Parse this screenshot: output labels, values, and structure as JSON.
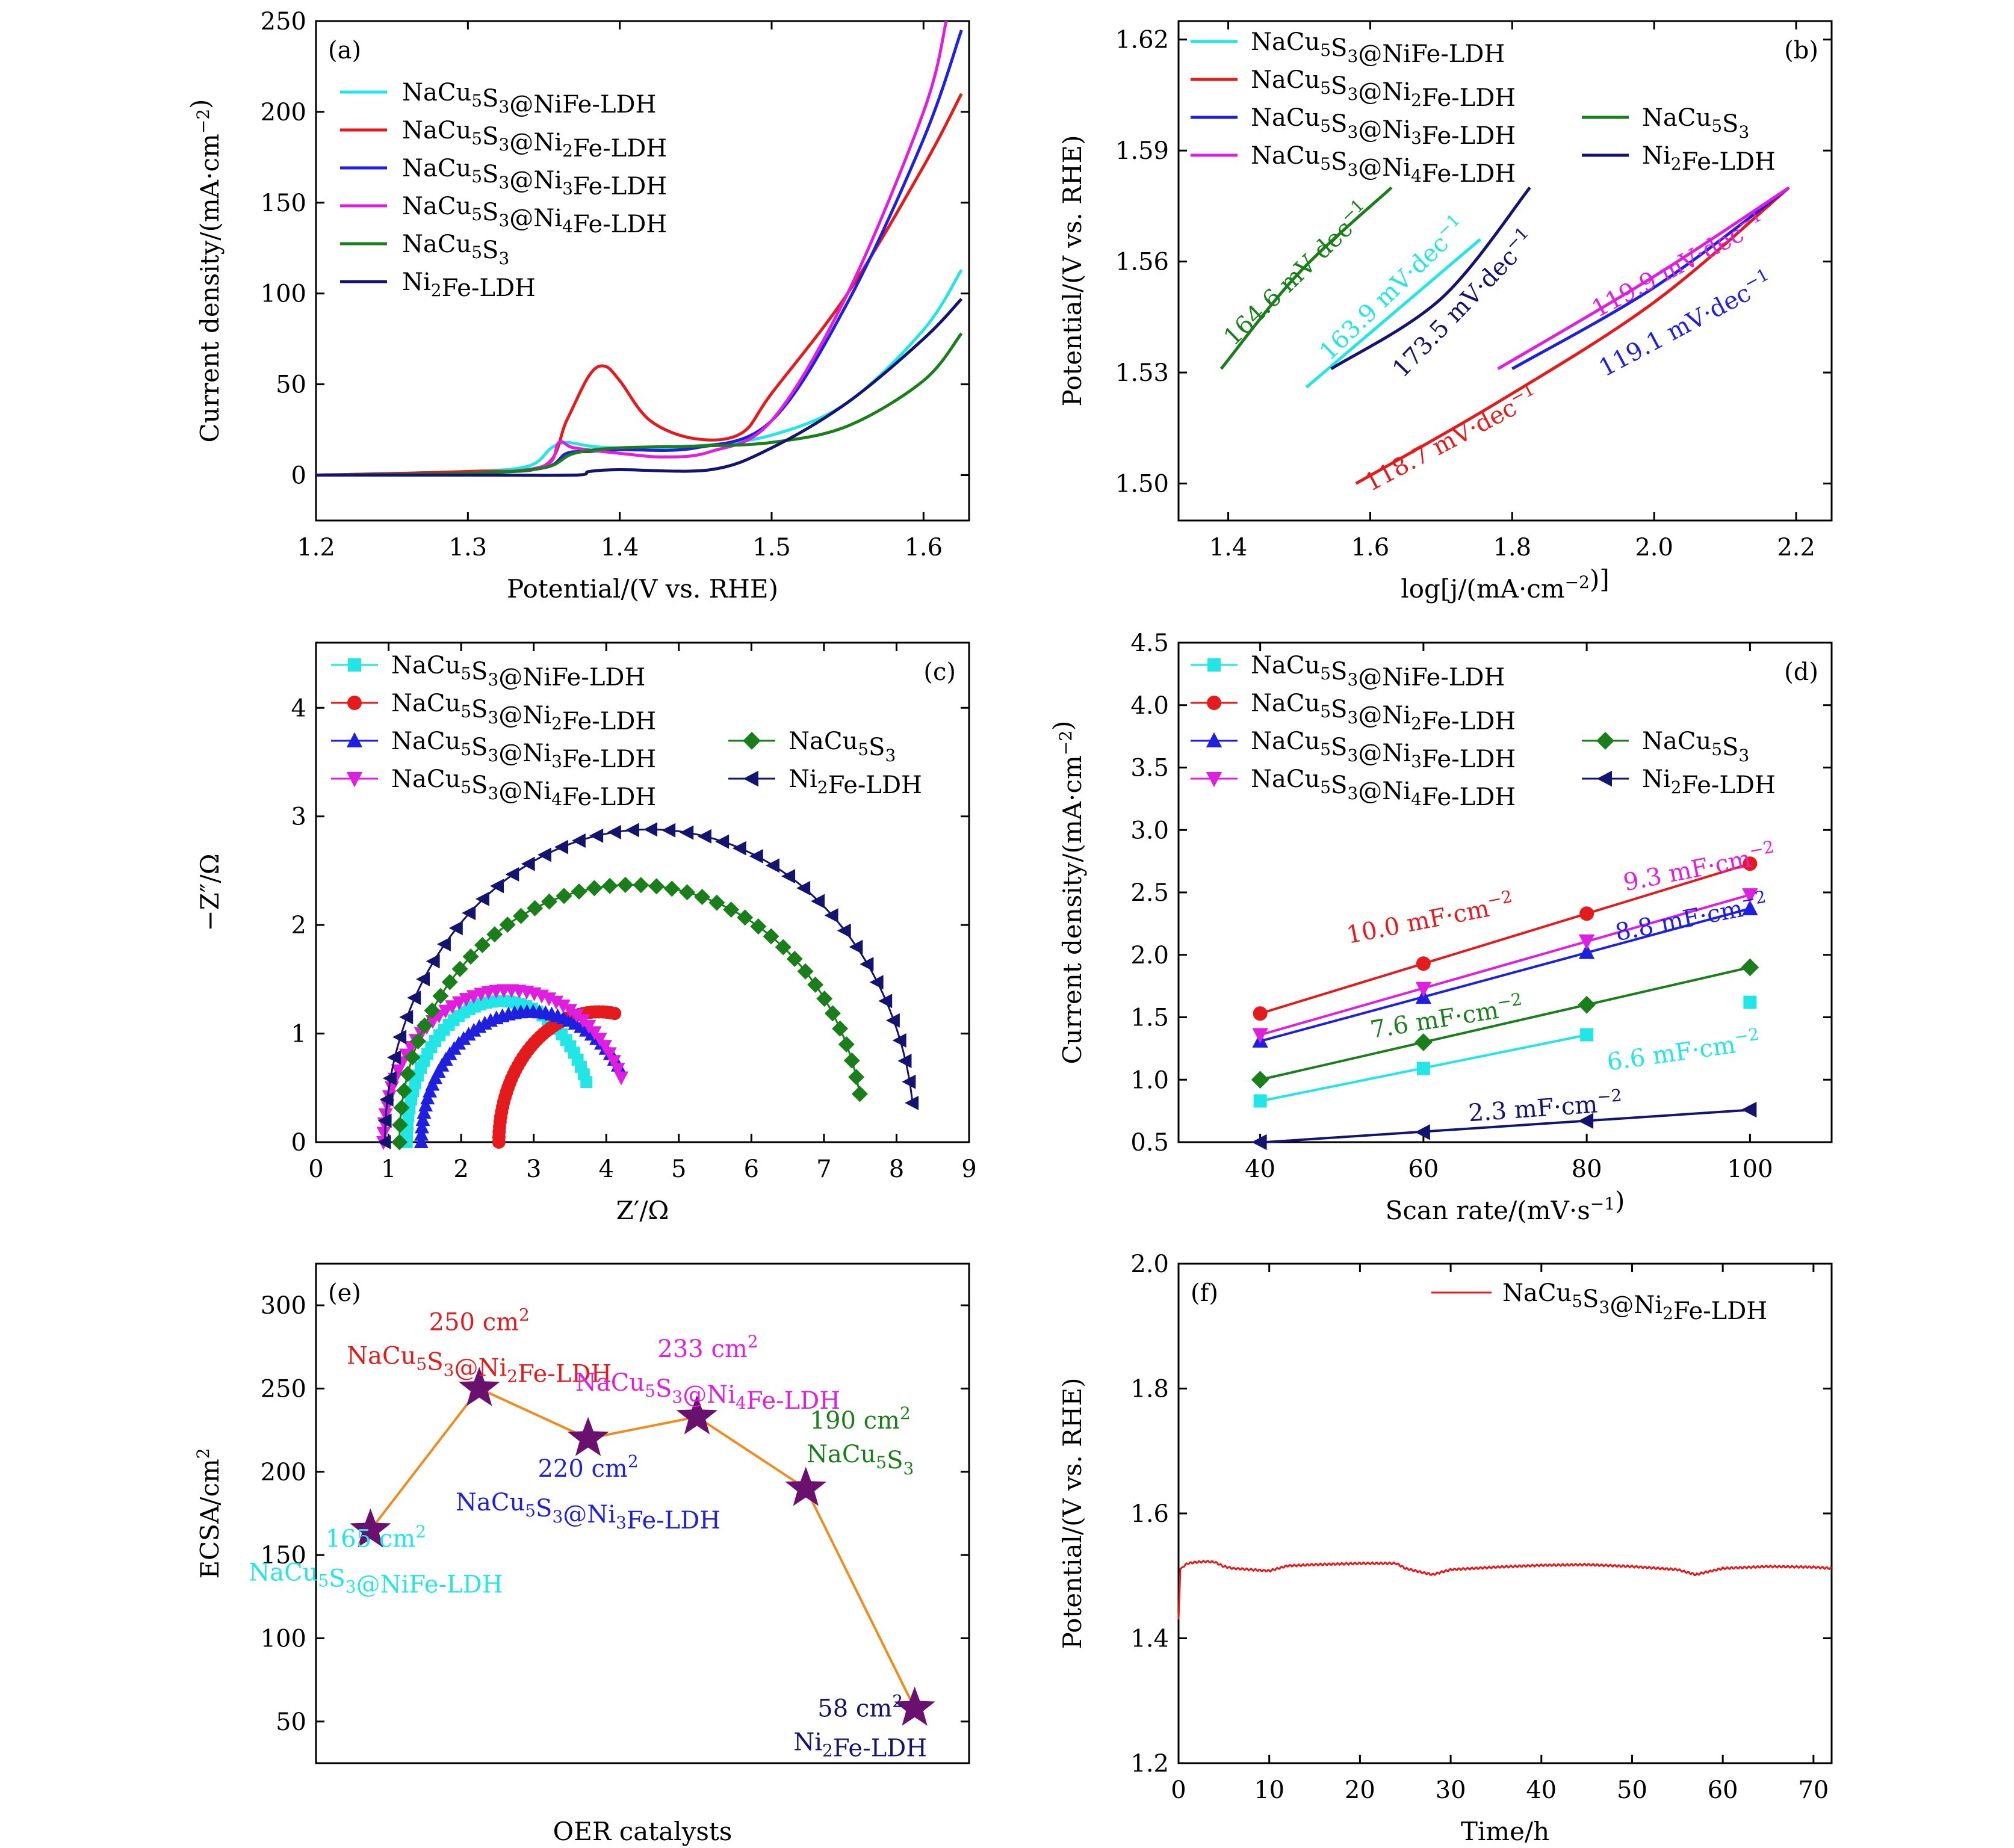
{
  "colors": {
    "cyan": "#22e6e6",
    "red": "#e41a1c",
    "blue": "#1f1fe0",
    "magenta": "#e01ee0",
    "green": "#1a7f1a",
    "navy": "#131370",
    "purple": "#6a1170",
    "orange": "#f08c1e"
  },
  "chart_data": [
    {
      "id": "a",
      "panel": "(a)",
      "type": "line",
      "xlabel": "Potential/(V vs. RHE)",
      "ylabel": "Current density/(mA·cm⁻²)",
      "xlim": [
        1.2,
        1.63
      ],
      "ylim": [
        -25,
        250
      ],
      "xticks": [
        1.2,
        1.3,
        1.4,
        1.5,
        1.6
      ],
      "xtick_labels": [
        "1.2",
        "1.3",
        "1.4",
        "1.5",
        "1.6"
      ],
      "yticks": [
        0,
        50,
        100,
        150,
        200,
        250
      ],
      "ytick_labels": [
        "0",
        "50",
        "100",
        "150",
        "200",
        "250"
      ],
      "legend_position": "top-left",
      "series": [
        {
          "name": "NaCu₅S₃@NiFe-LDH",
          "color": "cyan",
          "x": [
            1.2,
            1.3,
            1.34,
            1.355,
            1.365,
            1.38,
            1.4,
            1.45,
            1.5,
            1.55,
            1.6,
            1.625
          ],
          "y": [
            0,
            2,
            5,
            15,
            18,
            16,
            15,
            16,
            22,
            40,
            80,
            113
          ]
        },
        {
          "name": "NaCu₅S₃@Ni₂Fe-LDH",
          "color": "red",
          "x": [
            1.2,
            1.3,
            1.35,
            1.365,
            1.38,
            1.39,
            1.4,
            1.42,
            1.45,
            1.48,
            1.5,
            1.55,
            1.6,
            1.625
          ],
          "y": [
            0,
            2,
            5,
            30,
            55,
            60,
            52,
            30,
            20,
            23,
            45,
            100,
            170,
            210
          ]
        },
        {
          "name": "NaCu₅S₃@Ni₃Fe-LDH",
          "color": "blue",
          "x": [
            1.2,
            1.3,
            1.35,
            1.365,
            1.38,
            1.4,
            1.45,
            1.5,
            1.55,
            1.6,
            1.625
          ],
          "y": [
            0,
            1,
            4,
            12,
            13,
            14,
            15,
            30,
            95,
            185,
            245
          ]
        },
        {
          "name": "NaCu₅S₃@Ni₄Fe-LDH",
          "color": "magenta",
          "x": [
            1.2,
            1.3,
            1.35,
            1.36,
            1.37,
            1.4,
            1.43,
            1.46,
            1.5,
            1.55,
            1.6,
            1.615
          ],
          "y": [
            0,
            1,
            5,
            18,
            15,
            12,
            10,
            13,
            30,
            100,
            200,
            250
          ]
        },
        {
          "name": "NaCu₅S₃",
          "color": "green",
          "x": [
            1.2,
            1.3,
            1.35,
            1.37,
            1.4,
            1.45,
            1.5,
            1.55,
            1.6,
            1.625
          ],
          "y": [
            0,
            1,
            4,
            12,
            15,
            16,
            18,
            27,
            52,
            78
          ]
        },
        {
          "name": "Ni₂Fe-LDH",
          "color": "navy",
          "x": [
            1.2,
            1.3,
            1.37,
            1.38,
            1.4,
            1.46,
            1.5,
            1.55,
            1.6,
            1.625
          ],
          "y": [
            0,
            0,
            0,
            2,
            3,
            3,
            15,
            40,
            75,
            97
          ]
        }
      ]
    },
    {
      "id": "b",
      "panel": "(b)",
      "type": "line",
      "xlabel": "log[j/(mA·cm⁻²)]",
      "ylabel": "Potential/(V vs. RHE)",
      "xlim": [
        1.33,
        2.25
      ],
      "ylim": [
        1.49,
        1.625
      ],
      "xticks": [
        1.4,
        1.6,
        1.8,
        2.0,
        2.2
      ],
      "xtick_labels": [
        "1.4",
        "1.6",
        "1.8",
        "2.0",
        "2.2"
      ],
      "yticks": [
        1.5,
        1.53,
        1.56,
        1.59,
        1.62
      ],
      "ytick_labels": [
        "1.50",
        "1.53",
        "1.56",
        "1.59",
        "1.62"
      ],
      "legend_position": "top-left",
      "series": [
        {
          "name": "NaCu₅S₃@NiFe-LDH",
          "color": "cyan",
          "x": [
            1.51,
            1.755
          ],
          "y": [
            1.526,
            1.566
          ]
        },
        {
          "name": "NaCu₅S₃@Ni₂Fe-LDH",
          "color": "red",
          "x": [
            1.58,
            1.78,
            2.0,
            2.19
          ],
          "y": [
            1.5,
            1.522,
            1.549,
            1.58
          ]
        },
        {
          "name": "NaCu₅S₃@Ni₃Fe-LDH",
          "color": "blue",
          "x": [
            1.8,
            2.0,
            2.19
          ],
          "y": [
            1.531,
            1.553,
            1.58
          ]
        },
        {
          "name": "NaCu₅S₃@Ni₄Fe-LDH",
          "color": "magenta",
          "x": [
            1.78,
            2.0,
            2.19
          ],
          "y": [
            1.531,
            1.556,
            1.58
          ]
        },
        {
          "name": "NaCu₅S₃",
          "color": "green",
          "x": [
            1.39,
            1.5,
            1.63
          ],
          "y": [
            1.531,
            1.557,
            1.58
          ]
        },
        {
          "name": "Ni₂Fe-LDH",
          "color": "navy",
          "x": [
            1.545,
            1.7,
            1.825
          ],
          "y": [
            1.531,
            1.55,
            1.58
          ]
        }
      ],
      "annotations": [
        {
          "text": "164.6 mV·dec⁻¹",
          "color": "green",
          "x": 1.505,
          "y": 1.555,
          "angle": -44
        },
        {
          "text": "163.9 mV·dec⁻¹",
          "color": "cyan",
          "x": 1.64,
          "y": 1.551,
          "angle": -44
        },
        {
          "text": "173.5 mV·dec⁻¹",
          "color": "navy",
          "x": 1.74,
          "y": 1.547,
          "angle": -46
        },
        {
          "text": "119.9 mV·dec⁻¹",
          "color": "magenta",
          "x": 2.04,
          "y": 1.557,
          "angle": -28
        },
        {
          "text": "119.1 mV·dec⁻¹",
          "color": "blue",
          "x": 2.05,
          "y": 1.541,
          "angle": -28
        },
        {
          "text": "118.7 mV·dec⁻¹",
          "color": "red",
          "x": 1.72,
          "y": 1.51,
          "angle": -28
        }
      ]
    },
    {
      "id": "c",
      "panel": "(c)",
      "type": "scatter",
      "xlabel": "Z′/Ω",
      "ylabel": "−Z″/Ω",
      "xlim": [
        0,
        9
      ],
      "ylim": [
        0,
        4.6
      ],
      "xticks": [
        0,
        1,
        2,
        3,
        4,
        5,
        6,
        7,
        8,
        9
      ],
      "xtick_labels": [
        "0",
        "1",
        "2",
        "3",
        "4",
        "5",
        "6",
        "7",
        "8",
        "9"
      ],
      "yticks": [
        0,
        1,
        2,
        3,
        4
      ],
      "ytick_labels": [
        "0",
        "1",
        "2",
        "3",
        "4"
      ],
      "legend_position": "top-left",
      "series": [
        {
          "name": "NaCu₅S₃@NiFe-LDH",
          "color": "cyan",
          "marker": "square",
          "center": 2.55,
          "radius": 1.3,
          "height": 1.3,
          "t_end": 0.86
        },
        {
          "name": "NaCu₅S₃@Ni₂Fe-LDH",
          "color": "red",
          "marker": "circle",
          "center": 3.9,
          "radius": 1.38,
          "height": 1.2,
          "t_end": 0.55
        },
        {
          "name": "NaCu₅S₃@Ni₃Fe-LDH",
          "color": "blue",
          "marker": "triangle-up",
          "center": 2.95,
          "radius": 1.5,
          "height": 1.2,
          "t_end": 0.8
        },
        {
          "name": "NaCu₅S₃@Ni₄Fe-LDH",
          "color": "magenta",
          "marker": "triangle-down",
          "center": 2.65,
          "radius": 1.72,
          "height": 1.4,
          "t_end": 0.86
        },
        {
          "name": "NaCu₅S₃",
          "color": "green",
          "marker": "diamond",
          "center": 4.35,
          "radius": 3.2,
          "height": 2.37,
          "t_end": 0.94
        },
        {
          "name": "Ni₂Fe-LDH",
          "color": "navy",
          "marker": "triangle-left",
          "center": 4.6,
          "radius": 3.65,
          "height": 2.88,
          "t_end": 0.96
        }
      ]
    },
    {
      "id": "d",
      "panel": "(d)",
      "type": "scatter",
      "xlabel": "Scan rate/(mV·s⁻¹)",
      "ylabel": "Current density/(mA·cm⁻²)",
      "xlim": [
        30,
        110
      ],
      "ylim": [
        0.5,
        4.5
      ],
      "xticks": [
        40,
        60,
        80,
        100
      ],
      "xtick_labels": [
        "40",
        "60",
        "80",
        "100"
      ],
      "yticks": [
        0.5,
        1.0,
        1.5,
        2.0,
        2.5,
        3.0,
        3.5,
        4.0,
        4.5
      ],
      "ytick_labels": [
        "0.5",
        "1.0",
        "1.5",
        "2.0",
        "2.5",
        "3.0",
        "3.5",
        "4.0",
        "4.5"
      ],
      "legend_position": "top-left",
      "series": [
        {
          "name": "NaCu₅S₃@NiFe-LDH",
          "color": "cyan",
          "marker": "square",
          "x": [
            40,
            60,
            80,
            100
          ],
          "y": [
            0.83,
            1.09,
            1.36,
            1.62
          ],
          "fit_end": 80
        },
        {
          "name": "NaCu₅S₃@Ni₂Fe-LDH",
          "color": "red",
          "marker": "circle",
          "x": [
            40,
            60,
            80,
            100
          ],
          "y": [
            1.53,
            1.93,
            2.33,
            2.73
          ],
          "fit_end": 100
        },
        {
          "name": "NaCu₅S₃@Ni₃Fe-LDH",
          "color": "blue",
          "marker": "triangle-up",
          "x": [
            40,
            60,
            80,
            100
          ],
          "y": [
            1.31,
            1.66,
            2.02,
            2.37
          ],
          "fit_end": 100
        },
        {
          "name": "NaCu₅S₃@Ni₄Fe-LDH",
          "color": "magenta",
          "marker": "triangle-down",
          "x": [
            40,
            60,
            80,
            100
          ],
          "y": [
            1.36,
            1.73,
            2.11,
            2.48
          ],
          "fit_end": 100
        },
        {
          "name": "NaCu₅S₃",
          "color": "green",
          "marker": "diamond",
          "x": [
            40,
            60,
            80,
            100
          ],
          "y": [
            1.0,
            1.3,
            1.6,
            1.9
          ],
          "fit_end": 100
        },
        {
          "name": "Ni₂Fe-LDH",
          "color": "navy",
          "marker": "triangle-left",
          "x": [
            40,
            60,
            80,
            100
          ],
          "y": [
            0.5,
            0.58,
            0.67,
            0.76
          ],
          "fit_end": 100
        }
      ],
      "annotations": [
        {
          "text": "10.0 mF·cm⁻²",
          "color": "red",
          "x": 61,
          "y": 2.22,
          "angle": -11
        },
        {
          "text": "9.3 mF·cm⁻²",
          "color": "magenta",
          "x": 94,
          "y": 2.63,
          "angle": -11
        },
        {
          "text": "8.8 mF·cm⁻²",
          "color": "blue",
          "x": 93,
          "y": 2.23,
          "angle": -11
        },
        {
          "text": "7.6 mF·cm⁻²",
          "color": "green",
          "x": 63,
          "y": 1.43,
          "angle": -9
        },
        {
          "text": "6.6 mF·cm⁻²",
          "color": "cyan",
          "x": 92,
          "y": 1.16,
          "angle": -8
        },
        {
          "text": "2.3 mF·cm⁻²",
          "color": "navy",
          "x": 75,
          "y": 0.71,
          "angle": -4
        }
      ]
    },
    {
      "id": "e",
      "panel": "(e)",
      "type": "line",
      "xlabel": "OER catalysts",
      "ylabel": "ECSA/cm²",
      "xlim": [
        0,
        6
      ],
      "ylim": [
        25,
        325
      ],
      "yticks": [
        50,
        100,
        150,
        200,
        250,
        300
      ],
      "ytick_labels": [
        "50",
        "100",
        "150",
        "200",
        "250",
        "300"
      ],
      "x": [
        0.5,
        1.5,
        2.5,
        3.5,
        4.5,
        5.5
      ],
      "values": [
        165,
        250,
        220,
        233,
        190,
        58
      ],
      "line_color": "orange",
      "marker_color": "purple",
      "annotations": [
        {
          "lines": [
            "165 cm²",
            "NaCu₅S₃@NiFe-LDH"
          ],
          "color": "cyan",
          "x": 0.55,
          "y": 155
        },
        {
          "lines": [
            "250 cm²",
            "NaCu₅S₃@Ni₂Fe-LDH"
          ],
          "color": "red",
          "x": 1.5,
          "y": 285
        },
        {
          "lines": [
            "220 cm²",
            "NaCu₅S₃@Ni₃Fe-LDH"
          ],
          "color": "blue",
          "x": 2.5,
          "y": 197
        },
        {
          "lines": [
            "233 cm²",
            "NaCu₅S₃@Ni₄Fe-LDH"
          ],
          "color": "magenta",
          "x": 3.6,
          "y": 269
        },
        {
          "lines": [
            "190 cm²",
            "NaCu₅S₃"
          ],
          "color": "green",
          "x": 5.0,
          "y": 226
        },
        {
          "lines": [
            "58 cm²",
            "Ni₂Fe-LDH"
          ],
          "color": "navy",
          "x": 5.0,
          "y": 53
        }
      ]
    },
    {
      "id": "f",
      "panel": "(f)",
      "type": "line",
      "xlabel": "Time/h",
      "ylabel": "Potential/(V vs. RHE)",
      "xlim": [
        0,
        72
      ],
      "ylim": [
        1.2,
        2.0
      ],
      "xticks": [
        0,
        10,
        20,
        30,
        40,
        50,
        60,
        70
      ],
      "xtick_labels": [
        "0",
        "10",
        "20",
        "30",
        "40",
        "50",
        "60",
        "70"
      ],
      "yticks": [
        1.2,
        1.4,
        1.6,
        1.8,
        2.0
      ],
      "ytick_labels": [
        "1.2",
        "1.4",
        "1.6",
        "1.8",
        "2.0"
      ],
      "legend_position": "top-right",
      "series": [
        {
          "name": "NaCu₅S₃@Ni₂Fe-LDH",
          "color": "red",
          "x": [
            0,
            0.2,
            0.5,
            1,
            2,
            3,
            4,
            5,
            6,
            8,
            10,
            12,
            15,
            20,
            24,
            25,
            27,
            28,
            30,
            35,
            40,
            45,
            50,
            55,
            57,
            60,
            65,
            70,
            72
          ],
          "y": [
            1.43,
            1.51,
            1.515,
            1.52,
            1.522,
            1.523,
            1.522,
            1.515,
            1.512,
            1.51,
            1.508,
            1.516,
            1.518,
            1.52,
            1.52,
            1.512,
            1.505,
            1.502,
            1.51,
            1.514,
            1.517,
            1.518,
            1.515,
            1.51,
            1.502,
            1.512,
            1.515,
            1.514,
            1.512
          ]
        }
      ]
    }
  ]
}
